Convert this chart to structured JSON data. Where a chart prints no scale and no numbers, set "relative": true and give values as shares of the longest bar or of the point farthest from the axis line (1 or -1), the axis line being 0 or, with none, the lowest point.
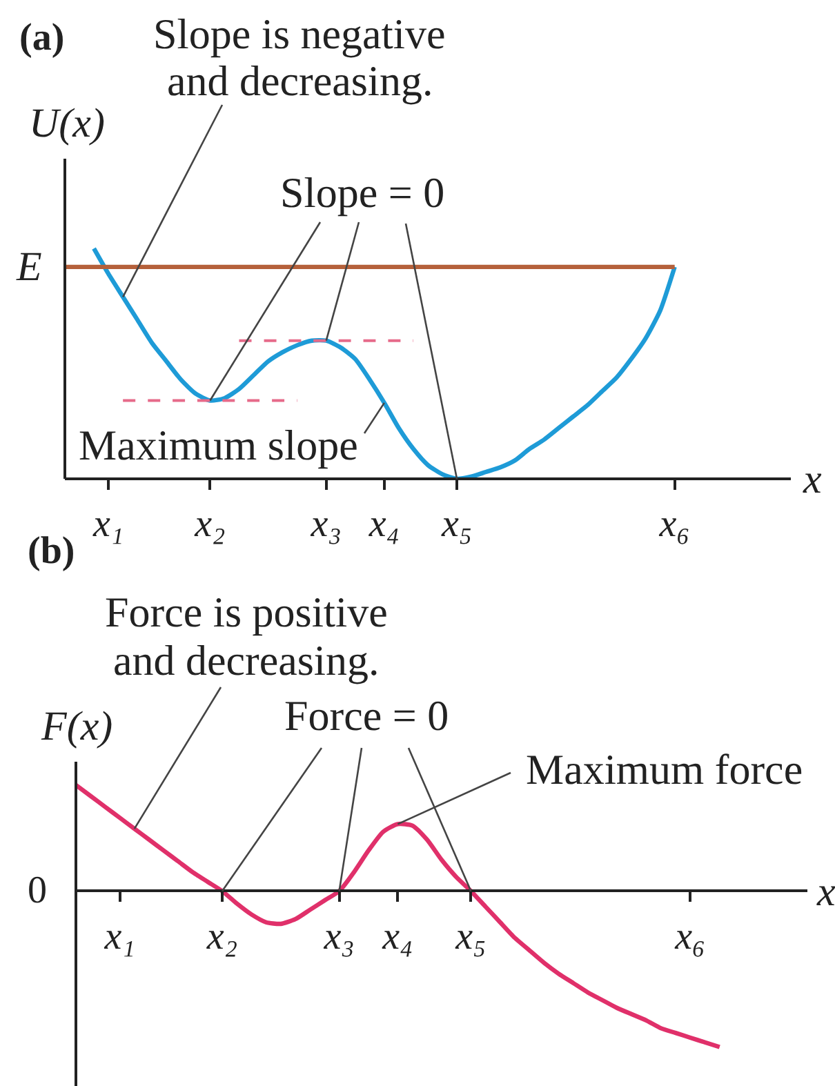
{
  "chart_data": [
    {
      "type": "line",
      "title": "(a)",
      "ylabel": "U(x)",
      "xlabel": "x",
      "relative": true,
      "categories": [
        null,
        null,
        null,
        "x₁",
        null,
        null,
        null,
        null,
        null,
        null,
        "x₂",
        null,
        null,
        null,
        null,
        null,
        null,
        null,
        "x₃",
        null,
        null,
        null,
        "x₄",
        null,
        null,
        null,
        null,
        "x₅",
        null,
        null,
        null,
        null,
        null,
        null,
        null,
        null,
        null,
        null,
        null,
        null,
        null,
        null,
        "x₆",
        null,
        null,
        null,
        null,
        null,
        null,
        null,
        null
      ],
      "series": [
        {
          "color": "#1e9bd7",
          "values": [
            null,
            null,
            1.0,
            0.89,
            0.79,
            0.69,
            0.59,
            0.51,
            0.43,
            0.37,
            0.34,
            0.35,
            0.39,
            0.45,
            0.51,
            0.55,
            0.58,
            0.6,
            0.6,
            0.57,
            0.52,
            0.43,
            0.33,
            0.22,
            0.13,
            0.06,
            0.02,
            0.0,
            0.01,
            0.03,
            0.05,
            0.08,
            0.13,
            0.17,
            0.22,
            0.27,
            0.32,
            0.38,
            0.44,
            0.52,
            0.61,
            0.73,
            0.92,
            null,
            null,
            null,
            null,
            null,
            null,
            null,
            null
          ]
        },
        {
          "name": "E",
          "color": "#b5603a",
          "values": [
            0.92,
            0.92,
            0.92,
            0.92,
            0.92,
            0.92,
            0.92,
            0.92,
            0.92,
            0.92,
            0.92,
            0.92,
            0.92,
            0.92,
            0.92,
            0.92,
            0.92,
            0.92,
            0.92,
            0.92,
            0.92,
            0.92,
            0.92,
            0.92,
            0.92,
            0.92,
            0.92,
            0.92,
            0.92,
            0.92,
            0.92,
            0.92,
            0.92,
            0.92,
            0.92,
            0.92,
            0.92,
            0.92,
            0.92,
            0.92,
            0.92,
            0.92,
            0.92,
            null,
            null,
            null,
            null,
            null,
            null,
            null,
            null
          ]
        },
        {
          "color": "#e66a8a",
          "line_style": "dashed",
          "values": [
            null,
            null,
            null,
            null,
            0.34,
            0.34,
            0.34,
            0.34,
            0.34,
            0.34,
            0.34,
            0.34,
            0.34,
            0.34,
            0.34,
            0.34,
            0.34,
            null,
            null,
            null,
            null,
            null,
            null,
            null,
            null,
            null,
            null,
            null,
            null,
            null,
            null,
            null,
            null,
            null,
            null,
            null,
            null,
            null,
            null,
            null,
            null,
            null,
            null,
            null,
            null,
            null,
            null,
            null,
            null,
            null,
            null
          ]
        },
        {
          "color": "#e66a8a",
          "line_style": "dashed",
          "values": [
            null,
            null,
            null,
            null,
            null,
            null,
            null,
            null,
            null,
            null,
            null,
            null,
            0.6,
            0.6,
            0.6,
            0.6,
            0.6,
            0.6,
            0.6,
            0.6,
            0.6,
            0.6,
            0.6,
            0.6,
            0.6,
            null,
            null,
            null,
            null,
            null,
            null,
            null,
            null,
            null,
            null,
            null,
            null,
            null,
            null,
            null,
            null,
            null,
            null,
            null,
            null,
            null,
            null,
            null,
            null,
            null,
            null
          ]
        }
      ],
      "annotations": [
        "Slope is negative\nand decreasing.",
        {
          "text": "Slope = 0",
          "x": "x₃",
          "y": 0.6
        },
        {
          "text": "Maximum slope",
          "x": "x₄",
          "y": 0.33
        }
      ],
      "legend": false,
      "marker": "none",
      "line_style": "solid",
      "tick_labels": "x"
    },
    {
      "type": "line",
      "title": "(b)",
      "ylabel": "F(x)",
      "xlabel": "x",
      "relative": true,
      "categories": [
        null,
        null,
        null,
        "x₁",
        null,
        null,
        null,
        null,
        null,
        null,
        "x₂",
        null,
        null,
        null,
        null,
        null,
        null,
        null,
        "x₃",
        null,
        null,
        null,
        "x₄",
        null,
        null,
        null,
        null,
        "x₅",
        null,
        null,
        null,
        null,
        null,
        null,
        null,
        null,
        null,
        null,
        null,
        null,
        null,
        null,
        "x₆",
        null,
        null,
        null,
        null,
        null,
        null,
        null,
        null
      ],
      "series": [
        {
          "color": "#e0306a",
          "values": [
            0.68,
            0.61,
            0.54,
            0.47,
            0.4,
            0.33,
            0.26,
            0.19,
            0.12,
            0.06,
            0,
            -0.08,
            -0.15,
            -0.2,
            -0.21,
            -0.18,
            -0.12,
            -0.06,
            0,
            0.12,
            0.26,
            0.38,
            0.43,
            0.42,
            0.33,
            0.2,
            0.09,
            0,
            -0.1,
            -0.2,
            -0.3,
            -0.38,
            -0.46,
            -0.53,
            -0.59,
            -0.65,
            -0.7,
            -0.75,
            -0.79,
            -0.83,
            -0.88,
            -0.91,
            -0.94,
            -0.97,
            -1.0,
            null,
            null,
            null,
            null,
            null,
            null
          ]
        }
      ],
      "annotations": [
        "Force is positive\nand decreasing.",
        {
          "text": "Force = 0",
          "x": "x₃",
          "y": 0
        },
        {
          "text": "Maximum force",
          "x": "x₄",
          "y": 0.43
        },
        "0"
      ],
      "legend": false,
      "marker": "none",
      "line_style": "solid",
      "tick_labels": "x"
    }
  ]
}
